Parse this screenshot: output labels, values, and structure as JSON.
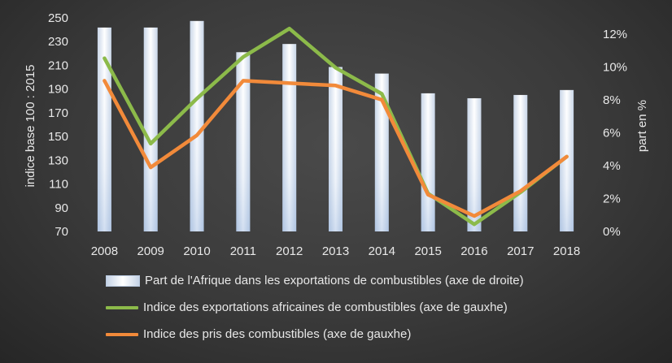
{
  "chart_data": {
    "type": "bar",
    "categories": [
      "2008",
      "2009",
      "2010",
      "2011",
      "2012",
      "2013",
      "2014",
      "2015",
      "2016",
      "2017",
      "2018"
    ],
    "ylabel_left": "indice base 100 : 2015",
    "ylabel_right": "part en %",
    "ylim_left": [
      70,
      250
    ],
    "yticks_left": [
      70,
      90,
      110,
      130,
      150,
      170,
      190,
      210,
      230,
      250
    ],
    "ylim_right": [
      0,
      13
    ],
    "yticks_right": [
      0,
      2,
      4,
      6,
      8,
      10,
      12
    ],
    "yticks_right_labels": [
      "0%",
      "2%",
      "4%",
      "6%",
      "8%",
      "10%",
      "12%"
    ],
    "grid": false,
    "legend_position": "bottom",
    "series": [
      {
        "name": "Part de l'Afrique dans les exportations de combustibles (axe de droite)",
        "type": "bar",
        "axis": "right",
        "values": [
          12.4,
          12.4,
          12.8,
          10.9,
          11.4,
          10.0,
          9.6,
          8.4,
          8.1,
          8.3,
          8.6
        ],
        "color": "#dfe8f4"
      },
      {
        "name": "Indice des exportations africaines de combustibles (axe de gauxhe)",
        "type": "line",
        "axis": "left",
        "values": [
          216,
          144,
          182,
          217,
          241,
          208,
          186,
          102,
          76,
          103,
          133
        ],
        "color": "#8cba4a"
      },
      {
        "name": "Indice des pris des combustibles (axe de gauxhe)",
        "type": "line",
        "axis": "left",
        "values": [
          197,
          124,
          151,
          197,
          195,
          193,
          181,
          101,
          83,
          104,
          133
        ],
        "color": "#f28a3a"
      }
    ]
  }
}
